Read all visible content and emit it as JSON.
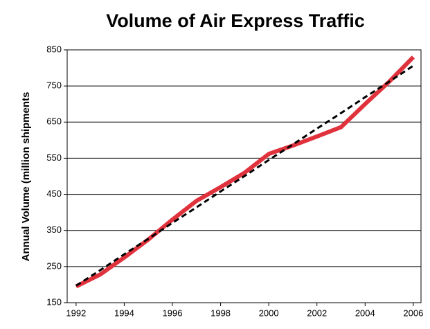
{
  "chart_data": {
    "type": "line",
    "title": "Volume of Air Express Traffic",
    "ylabel": "Annual Volume (million shipments",
    "x": [
      1992,
      1993,
      1994,
      1995,
      1996,
      1997,
      1998,
      1999,
      2000,
      2001,
      2002,
      2003,
      2004,
      2005,
      2006
    ],
    "series": [
      {
        "color": "#e0323c",
        "style": "solid",
        "values": [
          195,
          228,
          275,
          325,
          380,
          432,
          470,
          510,
          562,
          585,
          610,
          636,
          700,
          762,
          830
        ]
      },
      {
        "color": "#000000",
        "style": "dashed",
        "values": [
          197,
          240,
          284,
          327,
          371,
          414,
          458,
          501,
          545,
          588,
          632,
          675,
          719,
          762,
          806
        ]
      }
    ],
    "xlim": [
      1991.63,
      2006.32
    ],
    "xticks": [
      1992,
      1994,
      1996,
      1998,
      2000,
      2002,
      2004,
      2006
    ],
    "ylim": [
      150,
      850
    ],
    "yticks": [
      150,
      250,
      350,
      450,
      550,
      650,
      750,
      850
    ],
    "grid": true
  }
}
